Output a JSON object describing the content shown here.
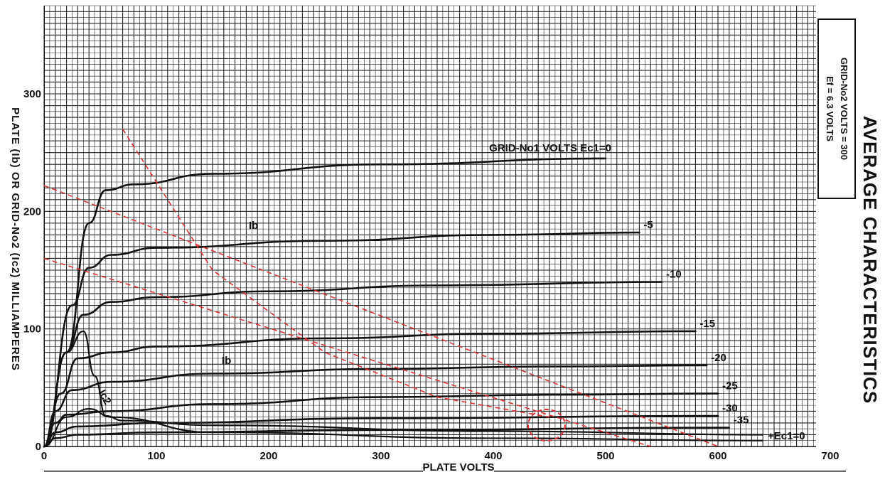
{
  "chart_data": {
    "type": "line",
    "title": "AVERAGE CHARACTERISTICS",
    "xlabel": "PLATE VOLTS",
    "ylabel": "PLATE (Ib) OR GRID-No2 (Ic2) MILLIAMPERES",
    "xlim": [
      0,
      700
    ],
    "ylim": [
      0,
      380
    ],
    "x_ticks": [
      0,
      100,
      200,
      300,
      400,
      500,
      600,
      700
    ],
    "y_ticks": [
      0,
      100,
      200,
      300
    ],
    "grid": true,
    "notes": [
      "Ef = 6.3 VOLTS",
      "GRID-No2 VOLTS = 300"
    ],
    "annotations": [
      "Ib",
      "Ib",
      "Ic2",
      "+Ec1=0"
    ],
    "series": [
      {
        "name": "GRID-No1 VOLTS Ec1=0",
        "x": [
          0,
          20,
          40,
          55,
          80,
          150,
          300,
          500
        ],
        "y": [
          0,
          80,
          190,
          218,
          223,
          232,
          240,
          245
        ]
      },
      {
        "name": "-5",
        "x": [
          0,
          25,
          40,
          60,
          100,
          250,
          400,
          530
        ],
        "y": [
          0,
          120,
          152,
          163,
          169,
          175,
          180,
          182
        ]
      },
      {
        "name": "-10",
        "x": [
          0,
          20,
          35,
          60,
          100,
          200,
          350,
          550
        ],
        "y": [
          0,
          80,
          112,
          123,
          127,
          132,
          137,
          140
        ]
      },
      {
        "name": "-15",
        "x": [
          0,
          15,
          30,
          60,
          100,
          250,
          400,
          580
        ],
        "y": [
          0,
          45,
          75,
          80,
          85,
          92,
          96,
          98
        ]
      },
      {
        "name": "-20",
        "x": [
          0,
          10,
          25,
          60,
          150,
          300,
          450,
          590
        ],
        "y": [
          0,
          30,
          48,
          55,
          62,
          66,
          68,
          69
        ]
      },
      {
        "name": "-25",
        "x": [
          0,
          10,
          20,
          60,
          150,
          300,
          450,
          600
        ],
        "y": [
          0,
          20,
          27,
          30,
          36,
          42,
          44,
          45
        ]
      },
      {
        "name": "-30",
        "x": [
          0,
          10,
          30,
          100,
          300,
          600
        ],
        "y": [
          0,
          12,
          17,
          20,
          24,
          26
        ]
      },
      {
        "name": "-35",
        "x": [
          0,
          10,
          30,
          100,
          300,
          610
        ],
        "y": [
          0,
          7,
          10,
          12,
          14,
          16
        ]
      },
      {
        "name": "Ic2 Ec1=0",
        "x": [
          0,
          20,
          35,
          45,
          55,
          70,
          150,
          400,
          640
        ],
        "y": [
          0,
          80,
          98,
          60,
          26,
          22,
          18,
          13,
          10
        ]
      },
      {
        "name": "Ic2 Ec1=-5",
        "x": [
          0,
          20,
          40,
          60,
          150,
          400,
          640
        ],
        "y": [
          0,
          25,
          32,
          25,
          12,
          7,
          5
        ]
      }
    ],
    "overlay_lines": [
      {
        "color": "#e03030",
        "style": "dashed",
        "x": [
          0,
          600
        ],
        "y": [
          222,
          0
        ]
      },
      {
        "color": "#e03030",
        "style": "dashed",
        "x": [
          0,
          540
        ],
        "y": [
          160,
          0
        ]
      },
      {
        "color": "#e03030",
        "style": "dashed",
        "x": [
          70,
          150,
          250,
          350,
          450
        ],
        "y": [
          270,
          150,
          80,
          42,
          25
        ]
      }
    ]
  }
}
